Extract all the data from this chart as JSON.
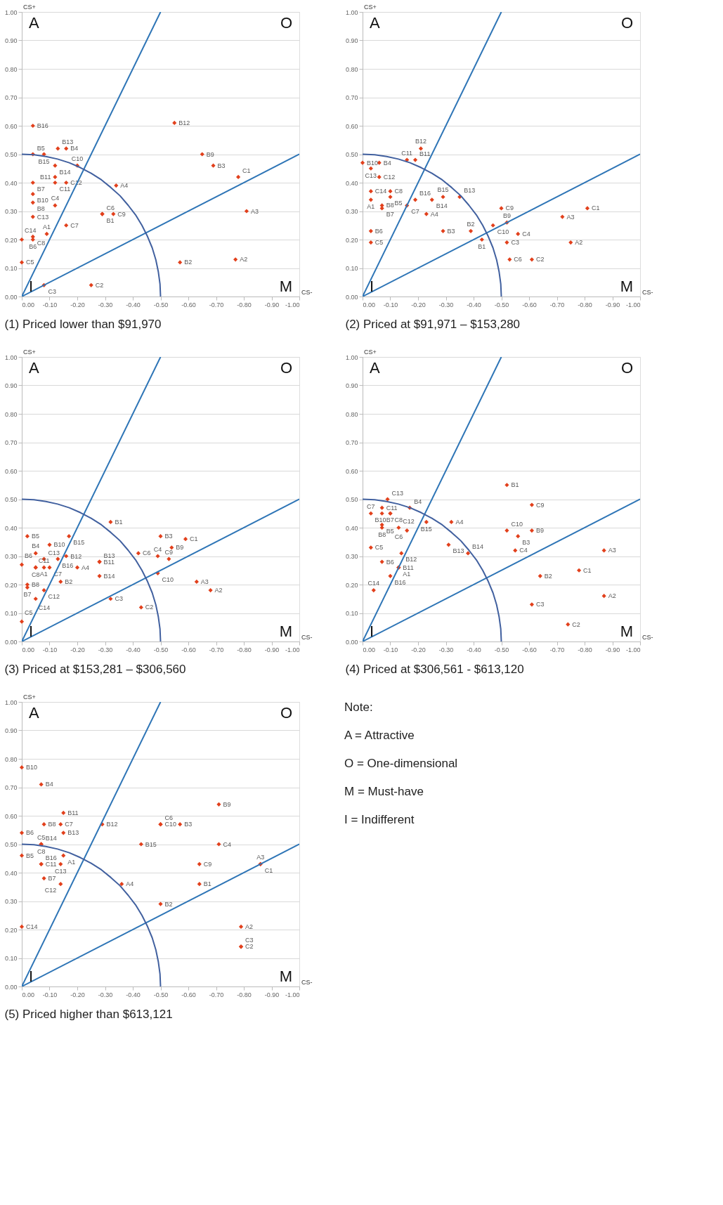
{
  "chart_data": [
    {
      "type": "scatter",
      "title": "(1) Priced lower than $91,970",
      "xlabel": "CS-",
      "ylabel": "CS+",
      "grid": "y",
      "annotations": [
        "A",
        "O",
        "I",
        "M"
      ],
      "xlim": [
        0,
        -1
      ],
      "ylim": [
        0,
        1
      ],
      "xticks": [
        {
          "value": 0,
          "label": "0.00"
        },
        {
          "value": -0.1,
          "label": "-0.10"
        },
        {
          "value": -0.2,
          "label": "-0.20"
        },
        {
          "value": -0.3,
          "label": "-0.30"
        },
        {
          "value": -0.4,
          "label": "-0.40"
        },
        {
          "value": -0.5,
          "label": "-0.50"
        },
        {
          "value": -0.6,
          "label": "-0.60"
        },
        {
          "value": -0.7,
          "label": "-0.70"
        },
        {
          "value": -0.8,
          "label": "-0.80"
        },
        {
          "value": -0.9,
          "label": "-0.90"
        },
        {
          "value": -1,
          "label": "-1.00"
        }
      ],
      "yticks": [
        {
          "value": 0,
          "label": "0.00"
        },
        {
          "value": 0.1,
          "label": "0.10"
        },
        {
          "value": 0.2,
          "label": "0.20"
        },
        {
          "value": 0.3,
          "label": "0.30"
        },
        {
          "value": 0.4,
          "label": "0.40"
        },
        {
          "value": 0.5,
          "label": "0.50"
        },
        {
          "value": 0.6,
          "label": "0.60"
        },
        {
          "value": 0.7,
          "label": "0.70"
        },
        {
          "value": 0.8,
          "label": "0.80"
        },
        {
          "value": 0.9,
          "label": "0.90"
        },
        {
          "value": 1,
          "label": "1.00"
        }
      ],
      "series": [
        {
          "type": "scatter",
          "color": "#e2401c",
          "marker": "diamond",
          "value_labels": [
            "B16",
            "B5",
            "B15",
            "B13",
            "B4",
            "B14",
            "C10",
            "B11",
            "B7",
            "C11",
            "C12",
            "A4",
            "B10",
            "B8",
            "C4",
            "C13",
            "C6",
            "B1",
            "C9",
            "C7",
            "C8",
            "B6",
            "A1",
            "C14",
            "C5",
            "C3",
            "C2",
            "B12",
            "B9",
            "B3",
            "C1",
            "A3",
            "B2",
            "A2"
          ],
          "x": [
            -0.04,
            -0.04,
            -0.08,
            -0.13,
            -0.16,
            -0.12,
            -0.2,
            -0.12,
            -0.04,
            -0.12,
            -0.16,
            -0.34,
            -0.04,
            -0.04,
            -0.12,
            -0.04,
            -0.29,
            -0.29,
            -0.33,
            -0.16,
            -0.04,
            -0.04,
            -0.09,
            0,
            0,
            -0.08,
            -0.25,
            -0.55,
            -0.65,
            -0.69,
            -0.78,
            -0.81,
            -0.57,
            -0.77
          ],
          "values": [
            0.6,
            0.5,
            0.5,
            0.52,
            0.52,
            0.46,
            0.46,
            0.42,
            0.4,
            0.4,
            0.4,
            0.39,
            0.36,
            0.33,
            0.32,
            0.28,
            0.29,
            0.29,
            0.29,
            0.25,
            0.21,
            0.2,
            0.22,
            0.2,
            0.12,
            0.04,
            0.04,
            0.61,
            0.5,
            0.46,
            0.42,
            0.3,
            0.12,
            0.13
          ]
        },
        {
          "type": "line",
          "color": "#2e75b6",
          "x": [
            0,
            -0.5
          ],
          "values": [
            0,
            1
          ]
        },
        {
          "type": "line",
          "color": "#2e75b6",
          "x": [
            0,
            -1
          ],
          "values": [
            0,
            0.5
          ]
        },
        {
          "type": "line",
          "color": "#41609f",
          "x": [
            0,
            -0.044,
            -0.087,
            -0.129,
            -0.171,
            -0.211,
            -0.25,
            -0.287,
            -0.321,
            -0.354,
            -0.383,
            -0.41,
            -0.433,
            -0.453,
            -0.47,
            -0.483,
            -0.492,
            -0.498,
            -0.5
          ],
          "values": [
            0.5,
            0.498,
            0.492,
            0.483,
            0.47,
            0.453,
            0.433,
            0.41,
            0.383,
            0.354,
            0.321,
            0.287,
            0.25,
            0.211,
            0.171,
            0.129,
            0.087,
            0.044,
            0
          ]
        }
      ]
    },
    {
      "type": "scatter",
      "title": "(2) Priced at  $91,971 – $153,280",
      "xlabel": "CS-",
      "ylabel": "CS+",
      "grid": "y",
      "annotations": [
        "A",
        "O",
        "I",
        "M"
      ],
      "xlim": [
        0,
        -1
      ],
      "ylim": [
        0,
        1
      ],
      "xticks": [
        {
          "value": 0,
          "label": "0.00"
        },
        {
          "value": -0.1,
          "label": "-0.10"
        },
        {
          "value": -0.2,
          "label": "-0.20"
        },
        {
          "value": -0.3,
          "label": "-0.30"
        },
        {
          "value": -0.4,
          "label": "-0.40"
        },
        {
          "value": -0.5,
          "label": "-0.50"
        },
        {
          "value": -0.6,
          "label": "-0.60"
        },
        {
          "value": -0.7,
          "label": "-0.70"
        },
        {
          "value": -0.8,
          "label": "-0.80"
        },
        {
          "value": -0.9,
          "label": "-0.90"
        },
        {
          "value": -1,
          "label": "-1.00"
        }
      ],
      "yticks": [
        {
          "value": 0,
          "label": "0.00"
        },
        {
          "value": 0.1,
          "label": "0.10"
        },
        {
          "value": 0.2,
          "label": "0.20"
        },
        {
          "value": 0.3,
          "label": "0.30"
        },
        {
          "value": 0.4,
          "label": "0.40"
        },
        {
          "value": 0.5,
          "label": "0.50"
        },
        {
          "value": 0.6,
          "label": "0.60"
        },
        {
          "value": 0.7,
          "label": "0.70"
        },
        {
          "value": 0.8,
          "label": "0.80"
        },
        {
          "value": 0.9,
          "label": "0.90"
        },
        {
          "value": 1,
          "label": "1.00"
        }
      ],
      "series": [
        {
          "type": "scatter",
          "color": "#e2401c",
          "marker": "diamond",
          "value_labels": [
            "B12",
            "C11",
            "B11",
            "B10",
            "B4",
            "C13",
            "C12",
            "C14",
            "C8",
            "B5",
            "A1",
            "B16",
            "B14",
            "B15",
            "B13",
            "B8",
            "B7",
            "C7",
            "A4",
            "C9",
            "B9",
            "C10",
            "A3",
            "C1",
            "B6",
            "C5",
            "B3",
            "B2",
            "B1",
            "C4",
            "C3",
            "A2",
            "C6",
            "C2"
          ],
          "x": [
            -0.21,
            -0.16,
            -0.19,
            0,
            -0.06,
            -0.03,
            -0.06,
            -0.03,
            -0.1,
            -0.1,
            -0.03,
            -0.19,
            -0.25,
            -0.29,
            -0.35,
            -0.07,
            -0.07,
            -0.16,
            -0.23,
            -0.5,
            -0.52,
            -0.47,
            -0.72,
            -0.81,
            -0.03,
            -0.03,
            -0.29,
            -0.39,
            -0.43,
            -0.56,
            -0.52,
            -0.75,
            -0.53,
            -0.61
          ],
          "values": [
            0.52,
            0.48,
            0.48,
            0.47,
            0.47,
            0.45,
            0.42,
            0.37,
            0.37,
            0.35,
            0.34,
            0.34,
            0.34,
            0.35,
            0.35,
            0.32,
            0.31,
            0.32,
            0.29,
            0.31,
            0.26,
            0.25,
            0.28,
            0.31,
            0.23,
            0.19,
            0.23,
            0.23,
            0.2,
            0.22,
            0.19,
            0.19,
            0.13,
            0.13
          ]
        },
        {
          "type": "line",
          "color": "#2e75b6",
          "x": [
            0,
            -0.5
          ],
          "values": [
            0,
            1
          ]
        },
        {
          "type": "line",
          "color": "#2e75b6",
          "x": [
            0,
            -1
          ],
          "values": [
            0,
            0.5
          ]
        },
        {
          "type": "line",
          "color": "#41609f",
          "x": [
            0,
            -0.044,
            -0.087,
            -0.129,
            -0.171,
            -0.211,
            -0.25,
            -0.287,
            -0.321,
            -0.354,
            -0.383,
            -0.41,
            -0.433,
            -0.453,
            -0.47,
            -0.483,
            -0.492,
            -0.498,
            -0.5
          ],
          "values": [
            0.5,
            0.498,
            0.492,
            0.483,
            0.47,
            0.453,
            0.433,
            0.41,
            0.383,
            0.354,
            0.321,
            0.287,
            0.25,
            0.211,
            0.171,
            0.129,
            0.087,
            0.044,
            0
          ]
        }
      ]
    },
    {
      "type": "scatter",
      "title": "(3) Priced at $153,281 – $306,560",
      "xlabel": "CS-",
      "ylabel": "CS+",
      "grid": "y",
      "annotations": [
        "A",
        "O",
        "I",
        "M"
      ],
      "xlim": [
        0,
        -1
      ],
      "ylim": [
        0,
        1
      ],
      "xticks": [
        {
          "value": 0,
          "label": "0.00"
        },
        {
          "value": -0.1,
          "label": "-0.10"
        },
        {
          "value": -0.2,
          "label": "-0.20"
        },
        {
          "value": -0.3,
          "label": "-0.30"
        },
        {
          "value": -0.4,
          "label": "-0.40"
        },
        {
          "value": -0.5,
          "label": "-0.50"
        },
        {
          "value": -0.6,
          "label": "-0.60"
        },
        {
          "value": -0.7,
          "label": "-0.70"
        },
        {
          "value": -0.8,
          "label": "-0.80"
        },
        {
          "value": -0.9,
          "label": "-0.90"
        },
        {
          "value": -1,
          "label": "-1.00"
        }
      ],
      "yticks": [
        {
          "value": 0,
          "label": "0.00"
        },
        {
          "value": 0.1,
          "label": "0.10"
        },
        {
          "value": 0.2,
          "label": "0.20"
        },
        {
          "value": 0.3,
          "label": "0.30"
        },
        {
          "value": 0.4,
          "label": "0.40"
        },
        {
          "value": 0.5,
          "label": "0.50"
        },
        {
          "value": 0.6,
          "label": "0.60"
        },
        {
          "value": 0.7,
          "label": "0.70"
        },
        {
          "value": 0.8,
          "label": "0.80"
        },
        {
          "value": 0.9,
          "label": "0.90"
        },
        {
          "value": 1,
          "label": "1.00"
        }
      ],
      "series": [
        {
          "type": "scatter",
          "color": "#e2401c",
          "marker": "diamond",
          "value_labels": [
            "B1",
            "B5",
            "B15",
            "B10",
            "B4",
            "B12",
            "C13",
            "B16",
            "B11",
            "B13",
            "B6",
            "A1",
            "C8",
            "C11",
            "C7",
            "A4",
            "B2",
            "B14",
            "B8",
            "B7",
            "C12",
            "C14",
            "C5",
            "C3",
            "C2",
            "C6",
            "B3",
            "C1",
            "B9",
            "C4",
            "C9",
            "C10",
            "A3",
            "A2"
          ],
          "x": [
            -0.32,
            -0.02,
            -0.17,
            -0.1,
            -0.05,
            -0.16,
            -0.08,
            -0.13,
            -0.28,
            -0.28,
            0,
            -0.05,
            -0.05,
            -0.08,
            -0.1,
            -0.2,
            -0.14,
            -0.28,
            -0.02,
            -0.02,
            -0.08,
            -0.05,
            0,
            -0.32,
            -0.43,
            -0.42,
            -0.5,
            -0.59,
            -0.54,
            -0.49,
            -0.53,
            -0.49,
            -0.63,
            -0.68
          ],
          "values": [
            0.42,
            0.37,
            0.37,
            0.34,
            0.31,
            0.3,
            0.29,
            0.29,
            0.28,
            0.28,
            0.27,
            0.26,
            0.26,
            0.26,
            0.26,
            0.26,
            0.21,
            0.23,
            0.2,
            0.19,
            0.18,
            0.15,
            0.07,
            0.15,
            0.12,
            0.31,
            0.37,
            0.36,
            0.33,
            0.3,
            0.29,
            0.24,
            0.21,
            0.18
          ]
        },
        {
          "type": "line",
          "color": "#2e75b6",
          "x": [
            0,
            -0.5
          ],
          "values": [
            0,
            1
          ]
        },
        {
          "type": "line",
          "color": "#2e75b6",
          "x": [
            0,
            -1
          ],
          "values": [
            0,
            0.5
          ]
        },
        {
          "type": "line",
          "color": "#41609f",
          "x": [
            0,
            -0.044,
            -0.087,
            -0.129,
            -0.171,
            -0.211,
            -0.25,
            -0.287,
            -0.321,
            -0.354,
            -0.383,
            -0.41,
            -0.433,
            -0.453,
            -0.47,
            -0.483,
            -0.492,
            -0.498,
            -0.5
          ],
          "values": [
            0.5,
            0.498,
            0.492,
            0.483,
            0.47,
            0.453,
            0.433,
            0.41,
            0.383,
            0.354,
            0.321,
            0.287,
            0.25,
            0.211,
            0.171,
            0.129,
            0.087,
            0.044,
            0
          ]
        }
      ]
    },
    {
      "type": "scatter",
      "title": "(4) Priced at $306,561 - $613,120",
      "xlabel": "CS-",
      "ylabel": "CS+",
      "grid": "y",
      "annotations": [
        "A",
        "O",
        "I",
        "M"
      ],
      "xlim": [
        0,
        -1
      ],
      "ylim": [
        0,
        1
      ],
      "xticks": [
        {
          "value": 0,
          "label": "0.00"
        },
        {
          "value": -0.1,
          "label": "-0.10"
        },
        {
          "value": -0.2,
          "label": "-0.20"
        },
        {
          "value": -0.3,
          "label": "-0.30"
        },
        {
          "value": -0.4,
          "label": "-0.40"
        },
        {
          "value": -0.5,
          "label": "-0.50"
        },
        {
          "value": -0.6,
          "label": "-0.60"
        },
        {
          "value": -0.7,
          "label": "-0.70"
        },
        {
          "value": -0.8,
          "label": "-0.80"
        },
        {
          "value": -0.9,
          "label": "-0.90"
        },
        {
          "value": -1,
          "label": "-1.00"
        }
      ],
      "yticks": [
        {
          "value": 0,
          "label": "0.00"
        },
        {
          "value": 0.1,
          "label": "0.10"
        },
        {
          "value": 0.2,
          "label": "0.20"
        },
        {
          "value": 0.3,
          "label": "0.30"
        },
        {
          "value": 0.4,
          "label": "0.40"
        },
        {
          "value": 0.5,
          "label": "0.50"
        },
        {
          "value": 0.6,
          "label": "0.60"
        },
        {
          "value": 0.7,
          "label": "0.70"
        },
        {
          "value": 0.8,
          "label": "0.80"
        },
        {
          "value": 0.9,
          "label": "0.90"
        },
        {
          "value": 1,
          "label": "1.00"
        }
      ],
      "series": [
        {
          "type": "scatter",
          "color": "#e2401c",
          "marker": "diamond",
          "value_labels": [
            "C13",
            "C7",
            "C11",
            "B7",
            "C8",
            "B10",
            "B4",
            "B15",
            "A4",
            "B5",
            "B8",
            "C12",
            "C6",
            "C5",
            "B13",
            "B14",
            "B12",
            "B6",
            "B11",
            "A1",
            "B16",
            "C14",
            "B1",
            "C9",
            "C10",
            "B3",
            "B9",
            "C4",
            "A3",
            "C1",
            "B2",
            "A2",
            "C3",
            "C2"
          ],
          "x": [
            -0.09,
            -0.03,
            -0.07,
            -0.07,
            -0.1,
            -0.1,
            -0.17,
            -0.23,
            -0.32,
            -0.07,
            -0.07,
            -0.13,
            -0.16,
            -0.03,
            -0.31,
            -0.38,
            -0.14,
            -0.07,
            -0.13,
            -0.13,
            -0.1,
            -0.04,
            -0.52,
            -0.61,
            -0.52,
            -0.56,
            -0.61,
            -0.55,
            -0.87,
            -0.78,
            -0.64,
            -0.87,
            -0.61,
            -0.74
          ],
          "values": [
            0.5,
            0.45,
            0.47,
            0.45,
            0.45,
            0.45,
            0.47,
            0.42,
            0.42,
            0.41,
            0.4,
            0.4,
            0.39,
            0.33,
            0.34,
            0.31,
            0.31,
            0.28,
            0.26,
            0.26,
            0.23,
            0.18,
            0.55,
            0.48,
            0.39,
            0.37,
            0.39,
            0.32,
            0.32,
            0.25,
            0.23,
            0.16,
            0.13,
            0.06
          ]
        },
        {
          "type": "line",
          "color": "#2e75b6",
          "x": [
            0,
            -0.5
          ],
          "values": [
            0,
            1
          ]
        },
        {
          "type": "line",
          "color": "#2e75b6",
          "x": [
            0,
            -1
          ],
          "values": [
            0,
            0.5
          ]
        },
        {
          "type": "line",
          "color": "#41609f",
          "x": [
            0,
            -0.044,
            -0.087,
            -0.129,
            -0.171,
            -0.211,
            -0.25,
            -0.287,
            -0.321,
            -0.354,
            -0.383,
            -0.41,
            -0.433,
            -0.453,
            -0.47,
            -0.483,
            -0.492,
            -0.498,
            -0.5
          ],
          "values": [
            0.5,
            0.498,
            0.492,
            0.483,
            0.47,
            0.453,
            0.433,
            0.41,
            0.383,
            0.354,
            0.321,
            0.287,
            0.25,
            0.211,
            0.171,
            0.129,
            0.087,
            0.044,
            0
          ]
        }
      ]
    },
    {
      "type": "scatter",
      "title": "(5) Priced higher than $613,121",
      "xlabel": "CS-",
      "ylabel": "CS+",
      "grid": "y",
      "annotations": [
        "A",
        "O",
        "I",
        "M"
      ],
      "xlim": [
        0,
        -1
      ],
      "ylim": [
        0,
        1
      ],
      "xticks": [
        {
          "value": 0,
          "label": "0.00"
        },
        {
          "value": -0.1,
          "label": "-0.10"
        },
        {
          "value": -0.2,
          "label": "-0.20"
        },
        {
          "value": -0.3,
          "label": "-0.30"
        },
        {
          "value": -0.4,
          "label": "-0.40"
        },
        {
          "value": -0.5,
          "label": "-0.50"
        },
        {
          "value": -0.6,
          "label": "-0.60"
        },
        {
          "value": -0.7,
          "label": "-0.70"
        },
        {
          "value": -0.8,
          "label": "-0.80"
        },
        {
          "value": -0.9,
          "label": "-0.90"
        },
        {
          "value": -1,
          "label": "-1.00"
        }
      ],
      "yticks": [
        {
          "value": 0,
          "label": "0.00"
        },
        {
          "value": 0.1,
          "label": "0.10"
        },
        {
          "value": 0.2,
          "label": "0.20"
        },
        {
          "value": 0.3,
          "label": "0.30"
        },
        {
          "value": 0.4,
          "label": "0.40"
        },
        {
          "value": 0.5,
          "label": "0.50"
        },
        {
          "value": 0.6,
          "label": "0.60"
        },
        {
          "value": 0.7,
          "label": "0.70"
        },
        {
          "value": 0.8,
          "label": "0.80"
        },
        {
          "value": 0.9,
          "label": "0.90"
        },
        {
          "value": 1,
          "label": "1.00"
        }
      ],
      "series": [
        {
          "type": "scatter",
          "color": "#e2401c",
          "marker": "diamond",
          "value_labels": [
            "B10",
            "B4",
            "B11",
            "B8",
            "C7",
            "B12",
            "C10",
            "C6",
            "B3",
            "B9",
            "B6",
            "B13",
            "B14",
            "C5",
            "C8",
            "B15",
            "C4",
            "B5",
            "A1",
            "C11",
            "B16",
            "C13",
            "C9",
            "C1",
            "A3",
            "B7",
            "C12",
            "A4",
            "B1",
            "B2",
            "C14",
            "A2",
            "C2",
            "C3"
          ],
          "x": [
            0,
            -0.07,
            -0.15,
            -0.08,
            -0.14,
            -0.29,
            -0.5,
            -0.5,
            -0.57,
            -0.71,
            0,
            -0.15,
            -0.07,
            -0.07,
            -0.07,
            -0.43,
            -0.71,
            0,
            -0.15,
            -0.07,
            -0.07,
            -0.14,
            -0.64,
            -0.86,
            -0.86,
            -0.08,
            -0.14,
            -0.36,
            -0.64,
            -0.5,
            0,
            -0.79,
            -0.79,
            -0.79
          ],
          "values": [
            0.77,
            0.71,
            0.61,
            0.57,
            0.57,
            0.57,
            0.57,
            0.57,
            0.57,
            0.64,
            0.54,
            0.54,
            0.5,
            0.5,
            0.5,
            0.5,
            0.5,
            0.46,
            0.46,
            0.43,
            0.43,
            0.43,
            0.43,
            0.43,
            0.43,
            0.38,
            0.36,
            0.36,
            0.36,
            0.29,
            0.21,
            0.21,
            0.14,
            0.14
          ]
        },
        {
          "type": "line",
          "color": "#2e75b6",
          "x": [
            0,
            -0.5
          ],
          "values": [
            0,
            1
          ]
        },
        {
          "type": "line",
          "color": "#2e75b6",
          "x": [
            0,
            -1
          ],
          "values": [
            0,
            0.5
          ]
        },
        {
          "type": "line",
          "color": "#41609f",
          "x": [
            0,
            -0.044,
            -0.087,
            -0.129,
            -0.171,
            -0.211,
            -0.25,
            -0.287,
            -0.321,
            -0.354,
            -0.383,
            -0.41,
            -0.433,
            -0.453,
            -0.47,
            -0.483,
            -0.492,
            -0.498,
            -0.5
          ],
          "values": [
            0.5,
            0.498,
            0.492,
            0.483,
            0.47,
            0.453,
            0.433,
            0.41,
            0.383,
            0.354,
            0.321,
            0.287,
            0.25,
            0.211,
            0.171,
            0.129,
            0.087,
            0.044,
            0
          ]
        }
      ]
    },
    {
      "type": "other",
      "title": "Note:",
      "annotations": [
        "A  =  Attractive",
        "O  =  One-dimensional",
        "M  =  Must-have",
        "I  =  Indifferent"
      ]
    }
  ]
}
